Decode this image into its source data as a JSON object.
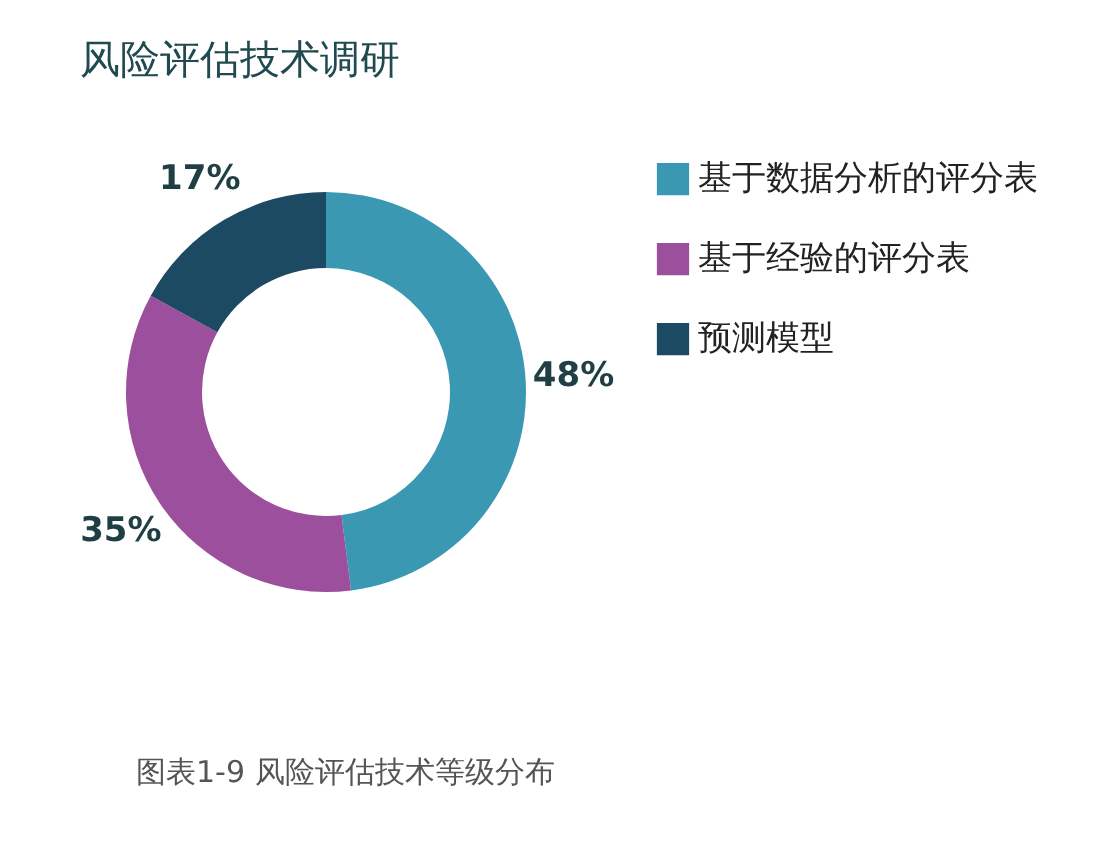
{
  "chart_data": {
    "type": "donut",
    "title": "风险评估技术调研",
    "categories": [
      "基于数据分析的评分表",
      "基于经验的评分表",
      "预测模型"
    ],
    "values": [
      48,
      35,
      17
    ],
    "colors": [
      "#3a98b3",
      "#9b4f9c",
      "#1c4a63"
    ],
    "value_labels": [
      "48%",
      "35%",
      "17%"
    ],
    "legend": "right",
    "annotations": [
      "图表1-9 风险评估技术等级分布"
    ]
  }
}
